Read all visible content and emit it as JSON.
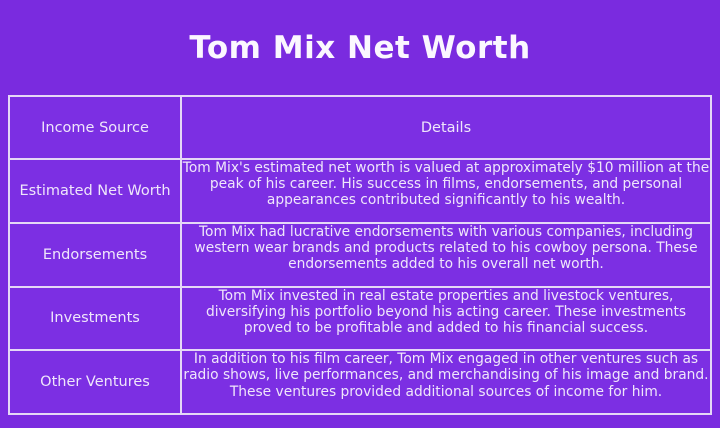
{
  "colors": {
    "background": "#7A2BDF",
    "cell": "#7C2FE3",
    "border": "#E5D8F6",
    "title_text": "#FBF7FF",
    "body_text": "#EFE6FB"
  },
  "page": {
    "title": "Tom Mix Net Worth"
  },
  "chart_data": {
    "type": "table",
    "title": "Tom Mix Net Worth",
    "columns": [
      "Income Source",
      "Details"
    ],
    "rows": [
      [
        "Estimated Net Worth",
        "Tom Mix's estimated net worth is valued at approximately $10 million at the peak of his career. His success in films, endorsements, and personal appearances contributed significantly to his wealth."
      ],
      [
        "Endorsements",
        "Tom Mix had lucrative endorsements with various companies, including western wear brands and products related to his cowboy persona. These endorsements added to his overall net worth."
      ],
      [
        "Investments",
        "Tom Mix invested in real estate properties and livestock ventures, diversifying his portfolio beyond his acting career. These investments proved to be profitable and added to his financial success."
      ],
      [
        "Other Ventures",
        "In addition to his film career, Tom Mix engaged in other ventures such as radio shows, live performances, and merchandising of his image and brand. These ventures provided additional sources of income for him."
      ]
    ],
    "layout": {
      "legend": "none",
      "grid": "full-borders",
      "title_position": "top-center"
    }
  }
}
